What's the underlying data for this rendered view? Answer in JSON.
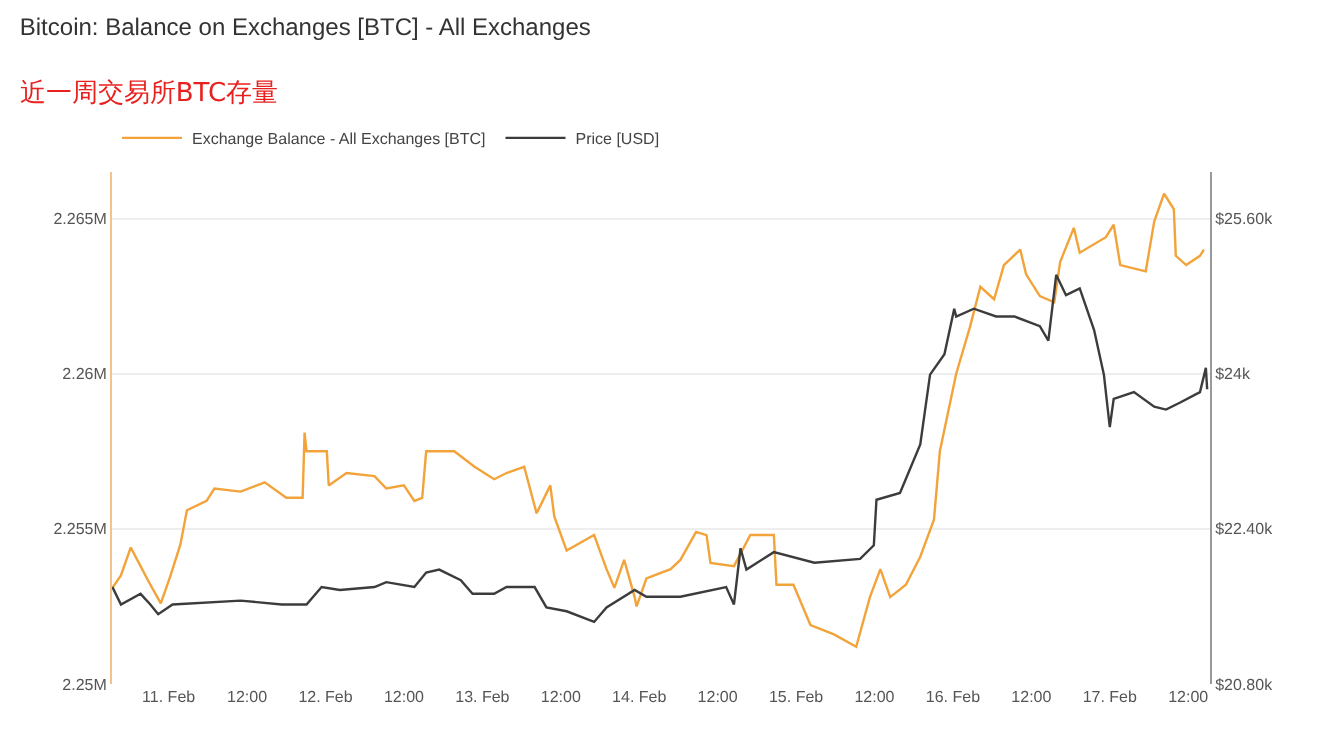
{
  "chart_data": {
    "type": "line",
    "title": "Bitcoin: Balance on Exchanges [BTC] - All Exchanges",
    "subtitle": "近一周交易所BTC存量",
    "xlim": [
      "--02-10T15:20",
      "--02-17T15:20"
    ],
    "xticks": [
      {
        "value": "--02-11",
        "label": "11. Feb"
      },
      {
        "value": "--02-11T12:00",
        "label": "12:00"
      },
      {
        "value": "--02-12",
        "label": "12. Feb"
      },
      {
        "value": "--02-12T12:00",
        "label": "12:00"
      },
      {
        "value": "--02-13",
        "label": "13. Feb"
      },
      {
        "value": "--02-13T12:00",
        "label": "12:00"
      },
      {
        "value": "--02-14",
        "label": "14. Feb"
      },
      {
        "value": "--02-14T12:00",
        "label": "12:00"
      },
      {
        "value": "--02-15",
        "label": "15. Feb"
      },
      {
        "value": "--02-15T12:00",
        "label": "12:00"
      },
      {
        "value": "--02-16",
        "label": "16. Feb"
      },
      {
        "value": "--02-16T12:00",
        "label": "12:00"
      },
      {
        "value": "--02-17",
        "label": "17. Feb"
      },
      {
        "value": "--02-17T12:00",
        "label": "12:00"
      }
    ],
    "ylim": [
      2250000,
      2266500
    ],
    "yticks": [
      {
        "value": 2250000,
        "label": "2.25M"
      },
      {
        "value": 2255000,
        "label": "2.255M"
      },
      {
        "value": 2260000,
        "label": "2.26M"
      },
      {
        "value": 2265000,
        "label": "2.265M"
      }
    ],
    "y2lim": [
      20800,
      26080
    ],
    "y2ticks": [
      {
        "value": 20800,
        "label": "$20.80k"
      },
      {
        "value": 22400,
        "label": "$22.40k"
      },
      {
        "value": 24000,
        "label": "$24k"
      },
      {
        "value": 25600,
        "label": "$25.60k"
      }
    ],
    "grid": "y",
    "legend": "top left",
    "marker": "none",
    "line_style": "solid",
    "series": [
      {
        "name": "Exchange Balance - All Exchanges [BTC]",
        "color": "#f2a33a",
        "x": [
          "--02-10T15:24",
          "--02-10T16:42",
          "--02-10T18:12",
          "--02-10T19:42",
          "--02-10T21:12",
          "--02-10T22:48",
          "--02-11T00:18",
          "--02-11T01:48",
          "--02-11T02:48",
          "--02-11T05:48",
          "--02-11T07:00",
          "--02-11T11:00",
          "--02-11T14:42",
          "--02-11T18:00",
          "--02-11T20:30",
          "--02-11T20:48",
          "--02-11T21:06",
          "--02-12T00:12",
          "--02-12T00:30",
          "--02-12T03:12",
          "--02-12T07:30",
          "--02-12T09:18",
          "--02-12T12:00",
          "--02-12T13:36",
          "--02-12T14:48",
          "--02-12T15:24",
          "--02-12T19:42",
          "--02-12T22:48",
          "--02-13T01:48",
          "--02-13T03:42",
          "--02-13T06:24",
          "--02-13T08:18",
          "--02-13T10:24",
          "--02-13T11:00",
          "--02-13T12:54",
          "--02-13T17:06",
          "--02-13T19:00",
          "--02-13T20:12",
          "--02-13T21:42",
          "--02-13T23:18",
          "--02-13T23:36",
          "--02-14T01:06",
          "--02-14T04:48",
          "--02-14T06:18",
          "--02-14T08:42",
          "--02-14T10:18",
          "--02-14T10:54",
          "--02-14T14:30",
          "--02-14T17:00",
          "--02-14T20:36",
          "--02-14T21:00",
          "--02-14T23:36",
          "--02-15T02:12",
          "--02-15T05:48",
          "--02-15T09:12",
          "--02-15T11:18",
          "--02-15T12:54",
          "--02-15T14:24",
          "--02-15T16:48",
          "--02-15T19:00",
          "--02-15T21:06",
          "--02-15T22:00",
          "--02-16T00:30",
          "--02-16T02:36",
          "--02-16T04:12",
          "--02-16T06:18",
          "--02-16T07:48",
          "--02-16T10:18",
          "--02-16T11:12",
          "--02-16T13:18",
          "--02-16T15:30",
          "--02-16T16:24",
          "--02-16T18:30",
          "--02-16T19:24",
          "--02-16T23:24",
          "--02-17T00:36",
          "--02-17T01:36",
          "--02-17T05:30",
          "--02-17T06:48",
          "--02-17T08:18",
          "--02-17T09:48",
          "--02-17T10:06",
          "--02-17T11:42",
          "--02-17T13:48",
          "--02-17T14:24"
        ],
        "values": [
          2253100,
          2253500,
          2254400,
          2253800,
          2253200,
          2252600,
          2253500,
          2254500,
          2255600,
          2255900,
          2256300,
          2256200,
          2256500,
          2256000,
          2256000,
          2258100,
          2257500,
          2257500,
          2256400,
          2256800,
          2256700,
          2256300,
          2256400,
          2255900,
          2256000,
          2257500,
          2257500,
          2257000,
          2256600,
          2256800,
          2257000,
          2255500,
          2256400,
          2255400,
          2254300,
          2254800,
          2253700,
          2253100,
          2254000,
          2252800,
          2252500,
          2253400,
          2253700,
          2254000,
          2254900,
          2254800,
          2253900,
          2253800,
          2254800,
          2254800,
          2253200,
          2253200,
          2251900,
          2251600,
          2251200,
          2252800,
          2253700,
          2252800,
          2253200,
          2254100,
          2255300,
          2257500,
          2260000,
          2261500,
          2262800,
          2262400,
          2263500,
          2264000,
          2263200,
          2262500,
          2262300,
          2263600,
          2264700,
          2263900,
          2264400,
          2264800,
          2263500,
          2263300,
          2264900,
          2265800,
          2265300,
          2263800,
          2263500,
          2263800,
          2264000
        ]
      },
      {
        "name": "Price [USD]",
        "color": "#3c3c3c",
        "axis": "y2",
        "x": [
          "--02-10T15:24",
          "--02-10T16:42",
          "--02-10T19:42",
          "--02-10T21:12",
          "--02-10T22:24",
          "--02-11T00:36",
          "--02-11T11:00",
          "--02-11T17:18",
          "--02-11T21:06",
          "--02-11T23:24",
          "--02-12T02:12",
          "--02-12T07:30",
          "--02-12T09:18",
          "--02-12T13:36",
          "--02-12T15:24",
          "--02-12T17:24",
          "--02-12T20:42",
          "--02-12T22:30",
          "--02-13T01:48",
          "--02-13T03:42",
          "--02-13T08:00",
          "--02-13T09:48",
          "--02-13T12:54",
          "--02-13T17:06",
          "--02-13T19:00",
          "--02-13T23:18",
          "--02-14T01:06",
          "--02-14T06:18",
          "--02-14T13:18",
          "--02-14T14:30",
          "--02-14T15:30",
          "--02-14T16:24",
          "--02-14T20:36",
          "--02-15T02:48",
          "--02-15T09:48",
          "--02-15T11:54",
          "--02-15T12:18",
          "--02-15T15:54",
          "--02-15T19:00",
          "--02-15T20:30",
          "--02-15T22:42",
          "--02-16T00:12",
          "--02-16T00:30",
          "--02-16T03:12",
          "--02-16T06:36",
          "--02-16T09:24",
          "--02-16T13:18",
          "--02-16T14:36",
          "--02-16T15:48",
          "--02-16T17:18",
          "--02-16T19:24",
          "--02-16T21:36",
          "--02-16T23:06",
          "--02-17T00:00",
          "--02-17T00:36",
          "--02-17T03:42",
          "--02-17T06:48",
          "--02-17T08:36",
          "--02-17T10:42",
          "--02-17T13:48",
          "--02-17T14:42",
          "--02-17T14:54"
        ],
        "values": [
          21800,
          21620,
          21730,
          21620,
          21520,
          21620,
          21660,
          21620,
          21620,
          21800,
          21770,
          21800,
          21850,
          21800,
          21950,
          21980,
          21870,
          21730,
          21730,
          21800,
          21800,
          21590,
          21550,
          21440,
          21590,
          21770,
          21700,
          21700,
          21800,
          21620,
          22200,
          21980,
          22160,
          22050,
          22090,
          22230,
          22700,
          22770,
          23270,
          23990,
          24200,
          24670,
          24590,
          24670,
          24590,
          24590,
          24490,
          24340,
          25020,
          24810,
          24880,
          24450,
          23990,
          23450,
          23740,
          23810,
          23660,
          23630,
          23700,
          23810,
          24060,
          23840
        ]
      }
    ]
  }
}
